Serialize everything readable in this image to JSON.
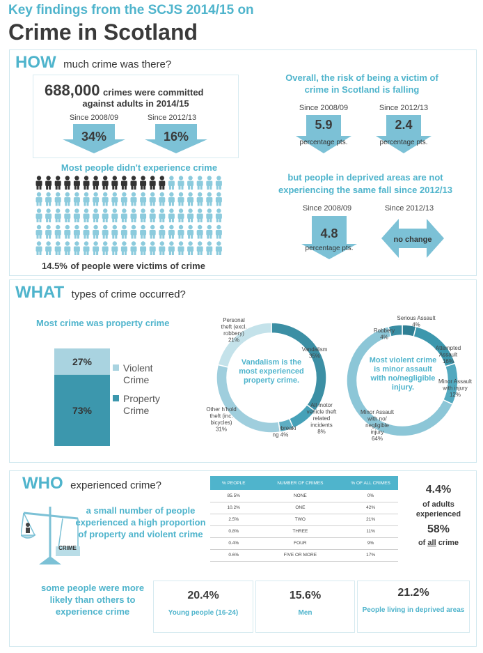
{
  "header": {
    "subtitle": "Key findings from the SCJS 2014/15 on",
    "title": "Crime in Scotland"
  },
  "how": {
    "heading": "HOW",
    "heading_rest": "much crime was there?",
    "total_number": "688,000",
    "total_text_1": "crimes were committed",
    "total_text_2": "against adults in 2014/15",
    "since_0809": "Since 2008/09",
    "since_1213": "Since 2012/13",
    "drop_0809": "34%",
    "drop_1213": "16%",
    "people_title": "Most people didn't experience crime",
    "people_caption_num": "14.5%",
    "people_caption": "of people were victims of crime",
    "victim_fraction": 0.145,
    "risk_title_1": "Overall, the risk of being a victim of",
    "risk_title_2": "crime in Scotland is falling",
    "risk_since_0809": "Since 2008/09",
    "risk_since_1213": "Since 2012/13",
    "risk_val_0809": "5.9",
    "risk_val_1213": "2.4",
    "pct_pts": "percentage pts.",
    "deprived_title_1": "but people in deprived areas are not",
    "deprived_title_2": "experiencing the same  fall since 2012/13",
    "dep_since_0809": "Since 2008/09",
    "dep_since_1213": "Since 2012/13",
    "dep_val_0809": "4.8",
    "dep_pct_pts": "percentage pts.",
    "no_change": "no change"
  },
  "what": {
    "heading": "WHAT",
    "heading_rest": "types of crime  occurred?",
    "bar_title": "Most crime was property crime",
    "legend_violent_1": "Violent",
    "legend_violent_2": "Crime",
    "legend_property_1": "Property",
    "legend_property_2": "Crime",
    "donut1_center": "Vandalism is the most experienced property crime.",
    "donut2_center": "Most violent crime is minor assault with no/negligible injury."
  },
  "chart_data": [
    {
      "type": "bar",
      "title": "Most crime was property crime",
      "categories": [
        "Violent Crime",
        "Property Crime"
      ],
      "values": [
        27,
        73
      ],
      "labels": [
        "27%",
        "73%"
      ],
      "stacked": true,
      "colors": [
        "#a9d3e0",
        "#3c97ad"
      ]
    },
    {
      "type": "pie",
      "donut": true,
      "categories": [
        "Vandalism",
        "All motor vehicle theft related incidents",
        "Housebreaking",
        "Other h'hold theft (inc. bicycles)",
        "Personal theft (excl. robbery)"
      ],
      "labels": [
        "Vandalism\n35%",
        "All motor\nvehicle theft\nrelated\nincidents\n8%",
        "Housebreaki\nng 4%",
        "Other h'hold\ntheft (inc.\nbicycles)\n31%",
        "Personal\ntheft (excl.\nrobbery)\n21%"
      ],
      "values": [
        35,
        8,
        4,
        31,
        21
      ],
      "colors": [
        "#3c8fa4",
        "#46a1b8",
        "#5eaec3",
        "#9fcedd",
        "#c4e2ea"
      ]
    },
    {
      "type": "pie",
      "donut": true,
      "categories": [
        "Serious Assault",
        "Attempted Assault",
        "Minor Assault with injury",
        "Minor Assault with no/negligible injury",
        "Robbery"
      ],
      "labels": [
        "Serious Assault\n4%",
        "Attempted\nAssault\n16%",
        "Minor Assault\nwith injury\n12%",
        "Minor Assault\nwith no/\nnegligible\ninjury\n64%",
        "Robbery\n4%"
      ],
      "values": [
        4,
        16,
        12,
        64,
        4
      ],
      "colors": [
        "#2f7f94",
        "#3c97ad",
        "#52a9bf",
        "#8cc6d7",
        "#3a8ea4"
      ]
    }
  ],
  "who": {
    "heading": "WHO",
    "heading_rest": "experienced crime?",
    "small_number_text": "a small number of people experienced a high proportion of property and violent crime",
    "scale_label": "CRIME",
    "table_headers": [
      "% PEOPLE",
      "NUMBER OF CRIMES",
      "% OF ALL CRIMES"
    ],
    "table_rows": [
      [
        "85.5%",
        "NONE",
        "0%"
      ],
      [
        "10.2%",
        "ONE",
        "42%"
      ],
      [
        "2.5%",
        "TWO",
        "21%"
      ],
      [
        "0.8%",
        "THREE",
        "11%"
      ],
      [
        "0.4%",
        "FOUR",
        "9%"
      ],
      [
        "0.6%",
        "FIVE OR MORE",
        "17%"
      ]
    ],
    "adults_pct": "4.4%",
    "adults_text_1": "of adults",
    "adults_text_2": "experienced",
    "crime_pct": "58%",
    "crime_text_of": "of",
    "crime_text_all": "all",
    "crime_text_crime": "crime",
    "likely_text": "some people were more likely than others to experience crime",
    "groups": [
      {
        "pct": "20.4%",
        "label": "Young people (16-24)"
      },
      {
        "pct": "15.6%",
        "label": "Men"
      },
      {
        "pct": "21.2%",
        "label": "People living in deprived areas"
      }
    ]
  }
}
